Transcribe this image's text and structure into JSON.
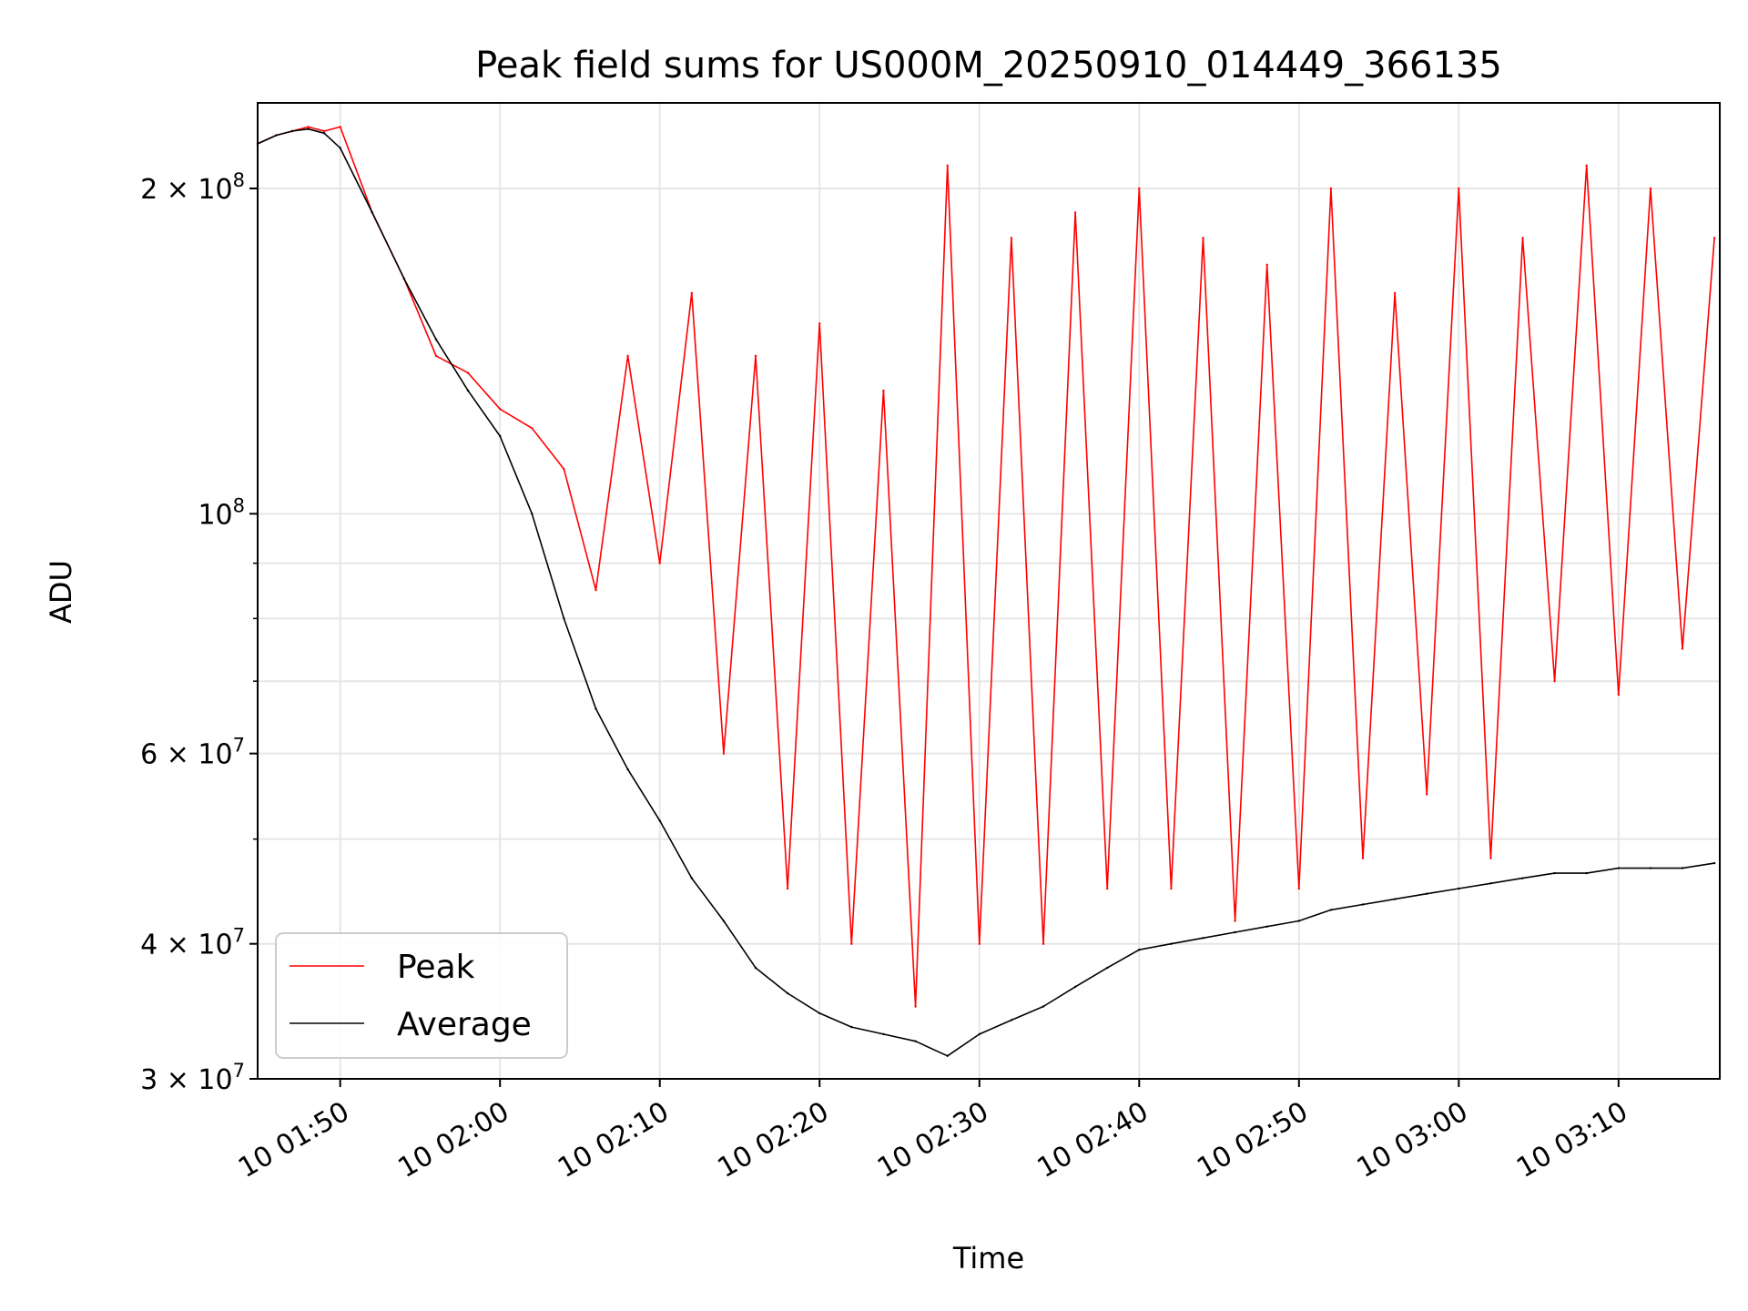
{
  "chart_data": {
    "type": "line",
    "title": "Peak field sums for US000M_20250910_014449_366135",
    "xlabel": "Time",
    "ylabel": "ADU",
    "yscale": "log",
    "ylim": [
      30000000,
      240000000
    ],
    "xlim": [
      "2025-09-10 01:44:50",
      "2025-09-10 03:16:20"
    ],
    "grid": true,
    "legend_position": "lower-left",
    "x_ticks": [
      "10 01:50",
      "10 02:00",
      "10 02:10",
      "10 02:20",
      "10 02:30",
      "10 02:40",
      "10 02:50",
      "10 03:00",
      "10 03:10"
    ],
    "x_tick_values": [
      "2025-09-10 01:50",
      "2025-09-10 02:00",
      "2025-09-10 02:10",
      "2025-09-10 02:20",
      "2025-09-10 02:30",
      "2025-09-10 02:40",
      "2025-09-10 02:50",
      "2025-09-10 03:00",
      "2025-09-10 03:10"
    ],
    "y_ticks": [
      {
        "value": 30000000,
        "mantissa": "3",
        "exp": "7"
      },
      {
        "value": 40000000,
        "mantissa": "4",
        "exp": "7"
      },
      {
        "value": 60000000,
        "mantissa": "6",
        "exp": "7"
      },
      {
        "value": 100000000,
        "mantissa": "",
        "exp": "8"
      },
      {
        "value": 200000000,
        "mantissa": "2",
        "exp": "8"
      }
    ],
    "x": [
      "01:44:50",
      "01:46:00",
      "01:47:00",
      "01:48:00",
      "01:49:00",
      "01:50:00",
      "01:52:00",
      "01:54:00",
      "01:56:00",
      "01:58:00",
      "02:00:00",
      "02:02:00",
      "02:04:00",
      "02:06:00",
      "02:08:00",
      "02:10:00",
      "02:12:00",
      "02:14:00",
      "02:16:00",
      "02:18:00",
      "02:20:00",
      "02:22:00",
      "02:24:00",
      "02:26:00",
      "02:28:00",
      "02:30:00",
      "02:32:00",
      "02:34:00",
      "02:36:00",
      "02:38:00",
      "02:40:00",
      "02:42:00",
      "02:44:00",
      "02:46:00",
      "02:48:00",
      "02:50:00",
      "02:52:00",
      "02:54:00",
      "02:56:00",
      "02:58:00",
      "03:00:00",
      "03:02:00",
      "03:04:00",
      "03:06:00",
      "03:08:00",
      "03:10:00",
      "03:12:00",
      "03:14:00",
      "03:16:00"
    ],
    "series": [
      {
        "name": "Peak",
        "color": "#ff0000",
        "values": [
          220000000,
          224000000,
          226000000,
          228000000,
          226000000,
          228000000,
          190000000,
          165000000,
          140000000,
          135000000,
          125000000,
          120000000,
          110000000,
          85000000,
          140000000,
          90000000,
          160000000,
          60000000,
          140000000,
          45000000,
          150000000,
          40000000,
          130000000,
          35000000,
          210000000,
          40000000,
          180000000,
          40000000,
          190000000,
          45000000,
          200000000,
          45000000,
          180000000,
          42000000,
          170000000,
          45000000,
          200000000,
          48000000,
          160000000,
          55000000,
          200000000,
          48000000,
          180000000,
          70000000,
          210000000,
          68000000,
          200000000,
          75000000,
          180000000
        ]
      },
      {
        "name": "Average",
        "color": "#000000",
        "values": [
          220000000,
          224000000,
          226000000,
          227000000,
          225000000,
          218000000,
          190000000,
          165000000,
          145000000,
          130000000,
          118000000,
          100000000,
          80000000,
          66000000,
          58000000,
          52000000,
          46000000,
          42000000,
          38000000,
          36000000,
          34500000,
          33500000,
          33000000,
          32500000,
          31500000,
          33000000,
          34000000,
          35000000,
          36500000,
          38000000,
          39500000,
          40000000,
          40500000,
          41000000,
          41500000,
          42000000,
          43000000,
          43500000,
          44000000,
          44500000,
          45000000,
          45500000,
          46000000,
          46500000,
          46500000,
          47000000,
          47000000,
          47000000,
          47500000
        ]
      }
    ]
  }
}
